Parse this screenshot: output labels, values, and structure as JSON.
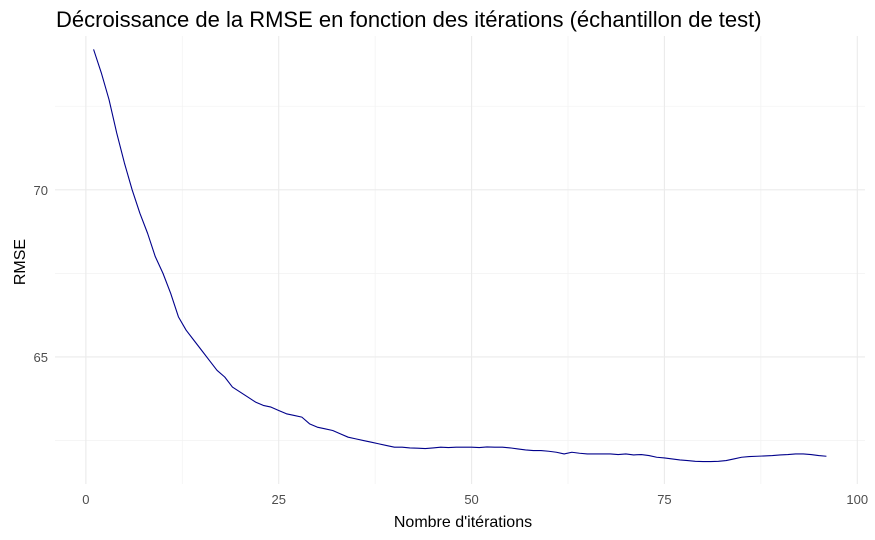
{
  "chart_data": {
    "type": "line",
    "title": "Décroissance de la RMSE en fonction des itérations (échantillon de test)",
    "xlabel": "Nombre d'itérations",
    "ylabel": "RMSE",
    "xlim": [
      -4,
      101
    ],
    "ylim": [
      61.2,
      74.6
    ],
    "x_ticks": [
      0,
      25,
      50,
      75,
      100
    ],
    "x_tick_labels": [
      "0",
      "25",
      "50",
      "75",
      "100"
    ],
    "y_ticks": [
      65,
      70
    ],
    "y_tick_labels": [
      "65",
      "70"
    ],
    "grid": true,
    "line_color": "#00008b",
    "series": [
      {
        "x": [
          1,
          2,
          3,
          4,
          5,
          6,
          7,
          8,
          9,
          10,
          11,
          12,
          13,
          14,
          15,
          16,
          17,
          18,
          19,
          20,
          21,
          22,
          23,
          24,
          25,
          26,
          27,
          28,
          29,
          30,
          31,
          32,
          33,
          34,
          35,
          36,
          37,
          38,
          39,
          40,
          41,
          42,
          43,
          44,
          45,
          46,
          47,
          48,
          49,
          50,
          51,
          52,
          53,
          54,
          55,
          56,
          57,
          58,
          59,
          60,
          61,
          62,
          63,
          64,
          65,
          66,
          67,
          68,
          69,
          70,
          71,
          72,
          73,
          74,
          75,
          76,
          77,
          78,
          79,
          80,
          81,
          82,
          83,
          84,
          85,
          86,
          87,
          88,
          89,
          90,
          91,
          92,
          93,
          94,
          95,
          96
        ],
        "y": [
          74.2,
          73.5,
          72.7,
          71.7,
          70.8,
          70.0,
          69.3,
          68.7,
          68.0,
          67.5,
          66.9,
          66.2,
          65.8,
          65.5,
          65.2,
          64.9,
          64.6,
          64.4,
          64.1,
          63.95,
          63.8,
          63.65,
          63.55,
          63.5,
          63.4,
          63.3,
          63.25,
          63.2,
          63.0,
          62.9,
          62.85,
          62.8,
          62.7,
          62.6,
          62.55,
          62.5,
          62.45,
          62.4,
          62.35,
          62.3,
          62.3,
          62.28,
          62.27,
          62.26,
          62.28,
          62.3,
          62.29,
          62.3,
          62.3,
          62.3,
          62.29,
          62.31,
          62.3,
          62.3,
          62.28,
          62.25,
          62.22,
          62.2,
          62.2,
          62.18,
          62.15,
          62.1,
          62.15,
          62.12,
          62.1,
          62.1,
          62.1,
          62.1,
          62.08,
          62.1,
          62.07,
          62.08,
          62.05,
          62.0,
          61.98,
          61.95,
          61.92,
          61.9,
          61.88,
          61.87,
          61.87,
          61.88,
          61.9,
          61.95,
          62.0,
          62.02,
          62.03,
          62.04,
          62.05,
          62.07,
          62.08,
          62.1,
          62.1,
          62.08,
          62.05,
          62.03
        ]
      }
    ]
  }
}
